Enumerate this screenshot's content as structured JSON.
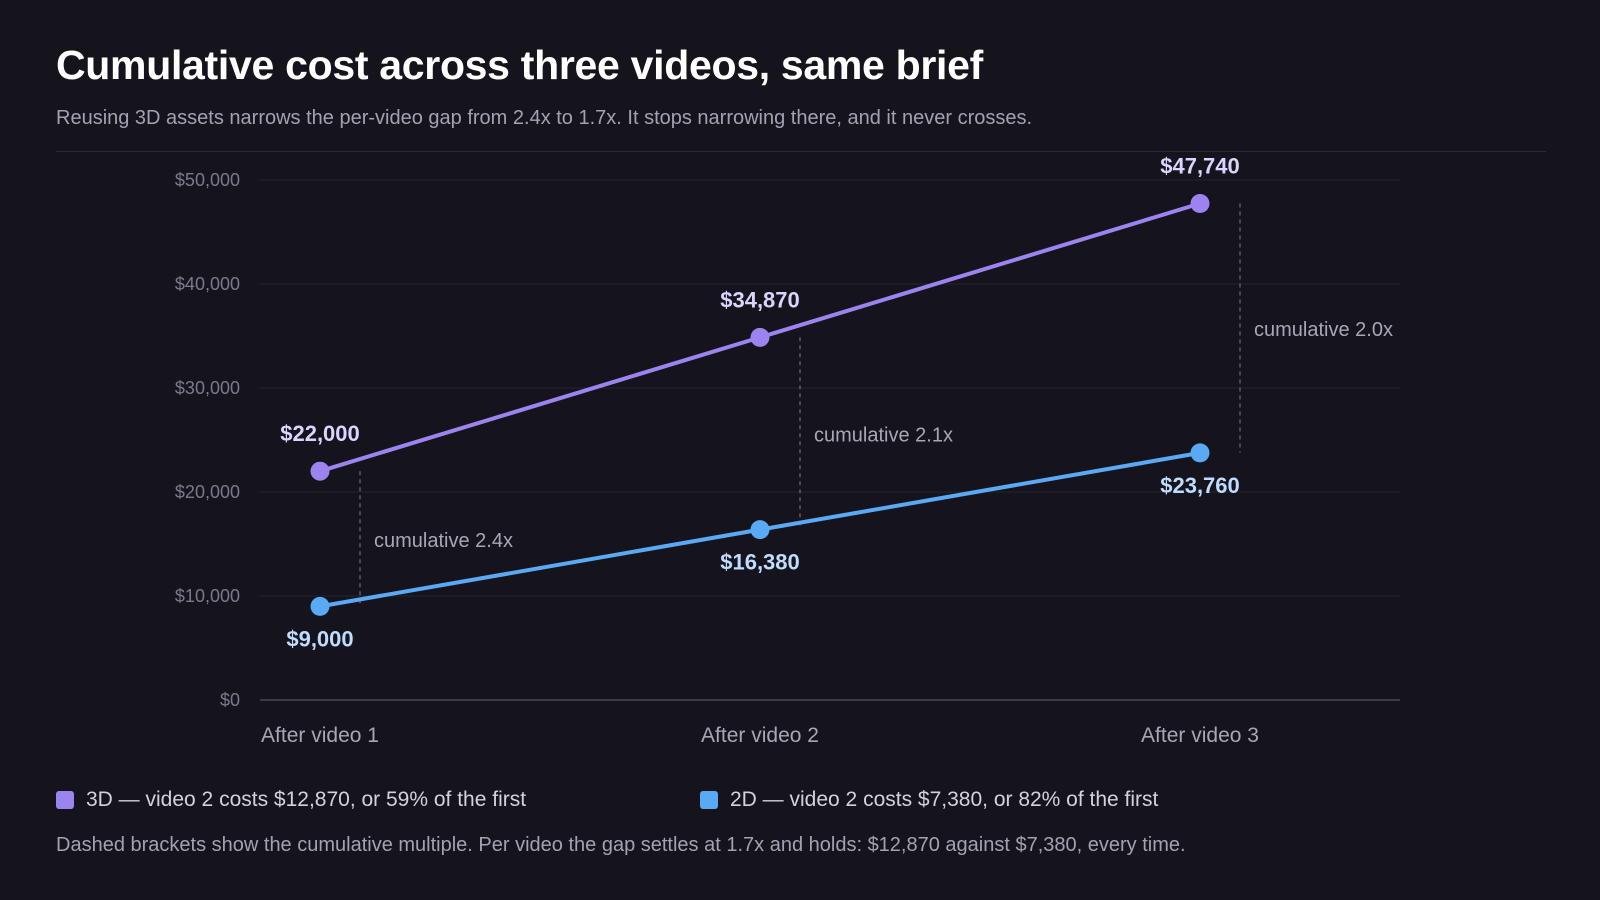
{
  "title": "Cumulative cost across three videos, same brief",
  "subtitle": "Reusing 3D assets narrows the per-video gap from 2.4x to 1.7x. It stops narrowing there, and it never crosses.",
  "chart_data": {
    "type": "line",
    "categories": [
      "After video 1",
      "After video 2",
      "After video 3"
    ],
    "ylim": [
      0,
      50000
    ],
    "yticks": [
      0,
      10000,
      20000,
      30000,
      40000,
      50000
    ],
    "ytick_labels": [
      "$0",
      "$10,000",
      "$20,000",
      "$30,000",
      "$40,000",
      "$50,000"
    ],
    "grid": true,
    "series": [
      {
        "key": "3d",
        "values": [
          22000,
          34870,
          47740
        ],
        "labels": [
          "$22,000",
          "$34,870",
          "$47,740"
        ],
        "color": "#9b84f0",
        "label_color": "#dcd3ff",
        "label_position": "above"
      },
      {
        "key": "2d",
        "values": [
          9000,
          16380,
          23760
        ],
        "labels": [
          "$9,000",
          "$16,380",
          "$23,760"
        ],
        "color": "#5aa9f5",
        "label_color": "#bfdcff",
        "label_position": "below"
      }
    ],
    "annotations": [
      "cumulative 2.4x",
      "cumulative 2.1x",
      "cumulative 2.0x"
    ]
  },
  "legend": [
    {
      "text": "3D — video 2 costs $12,870, or 59% of the first",
      "color": "#9b84f0"
    },
    {
      "text": "2D — video 2 costs $7,380, or 82% of the first",
      "color": "#5aa9f5"
    }
  ],
  "footnote": "Dashed brackets show the cumulative multiple. Per video the gap settles at 1.7x and holds: $12,870 against $7,380, every time."
}
